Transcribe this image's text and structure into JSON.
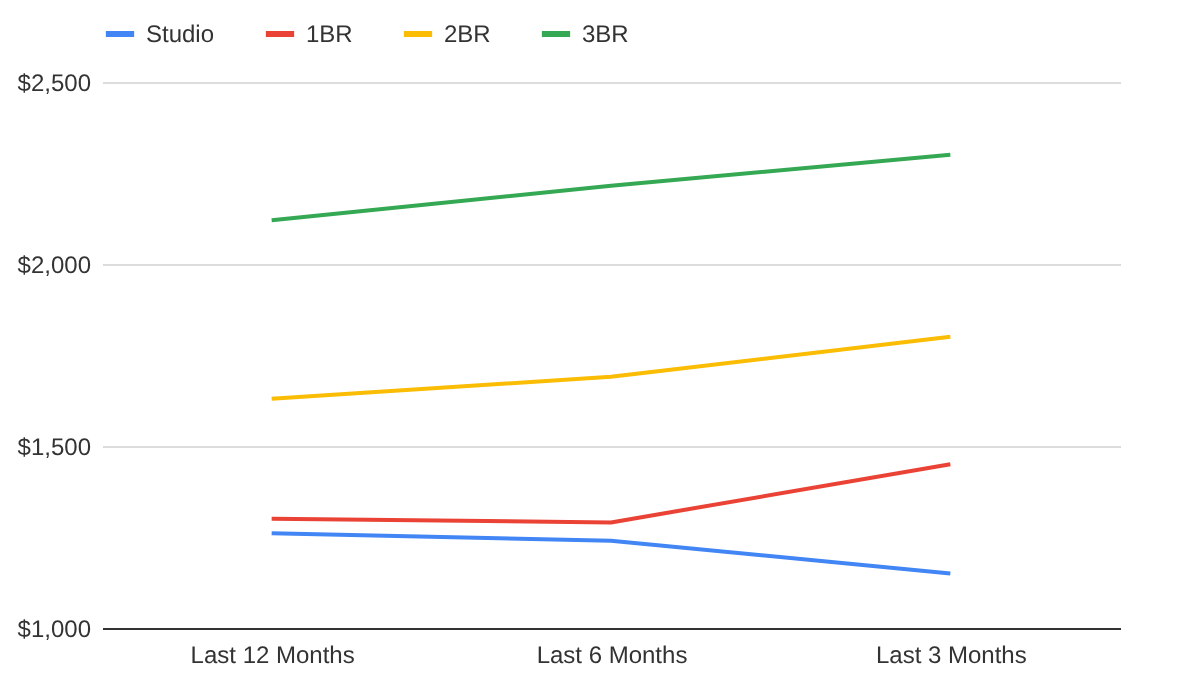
{
  "chart_data": {
    "type": "line",
    "categories": [
      "Last 12 Months",
      "Last 6 Months",
      "Last 3 Months"
    ],
    "series": [
      {
        "name": "Studio",
        "color": "#4285f4",
        "values": [
          1260,
          1240,
          1150
        ]
      },
      {
        "name": "1BR",
        "color": "#ea4335",
        "values": [
          1300,
          1290,
          1450
        ]
      },
      {
        "name": "2BR",
        "color": "#fbbc04",
        "values": [
          1630,
          1690,
          1800
        ]
      },
      {
        "name": "3BR",
        "color": "#34a853",
        "values": [
          2120,
          2215,
          2300
        ]
      }
    ],
    "ylim": [
      1000,
      2500
    ],
    "yticks": [
      {
        "value": 1000,
        "label": "$1,000"
      },
      {
        "value": 1500,
        "label": "$1,500"
      },
      {
        "value": 2000,
        "label": "$2,000"
      },
      {
        "value": 2500,
        "label": "$2,500"
      }
    ],
    "grid": "y",
    "legend": "top",
    "marker": "none",
    "line_style": "solid"
  }
}
